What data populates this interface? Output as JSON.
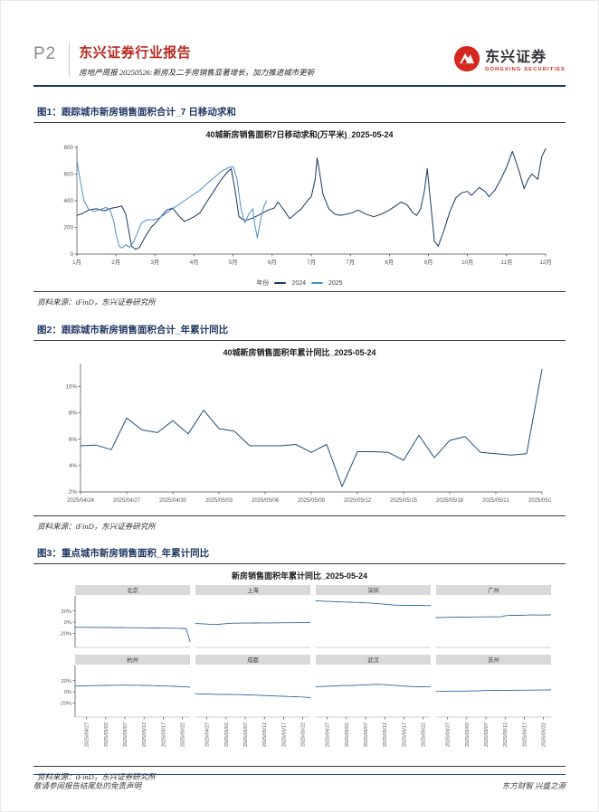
{
  "page": {
    "number": "P2",
    "footer_left": "敬请参阅报告结尾处的免责声明",
    "footer_right": "东方财智 兴盛之源"
  },
  "header": {
    "report_type": "东兴证券行业报告",
    "subtitle": "房地产周报 20250526:新房及二手房销售显著增长，加力推进城市更新",
    "logo_cn": "东兴证券",
    "logo_en": "DONGXING SECURITIES"
  },
  "figures": [
    {
      "caption": "图1：跟踪城市新房销售面积合计_7 日移动求和",
      "source": "资料来源：iFinD，东兴证券研究所"
    },
    {
      "caption": "图2：跟踪城市新房销售面积合计_年累计同比",
      "source": "资料来源：iFinD，东兴证券研究所"
    },
    {
      "caption": "图3：重点城市新房销售面积_年累计同比",
      "source": "资料来源：iFinD，东兴证券研究所"
    }
  ],
  "colors": {
    "accent_red": "#b5291f",
    "caption_navy": "#1f3864",
    "logo_red": "#d5281e",
    "panel_strip": "#d9d9d9"
  },
  "chart_data": [
    {
      "type": "line",
      "title": "40城新房销售面积7日移动求和(万平米)_2025-05-24",
      "legend_title": "年份",
      "x_ticks": [
        "1月",
        "2月",
        "3月",
        "4月",
        "5月",
        "6月",
        "7月",
        "7月",
        "8月",
        "9月",
        "10月",
        "11月",
        "12月"
      ],
      "yticks": [
        0,
        200,
        400,
        600,
        800
      ],
      "ylim": [
        0,
        800
      ],
      "legend_position": "bottom",
      "series": [
        {
          "name": "2024",
          "color": "#17375e",
          "x": [
            0,
            0.15,
            0.3,
            0.5,
            0.7,
            0.9,
            1.0,
            1.15,
            1.25,
            1.4,
            1.5,
            1.6,
            1.75,
            1.9,
            2.0,
            2.15,
            2.3,
            2.45,
            2.6,
            2.75,
            2.9,
            3.0,
            3.15,
            3.3,
            3.5,
            3.7,
            3.85,
            3.95,
            4.05,
            4.15,
            4.3,
            4.5,
            4.7,
            4.9,
            5.05,
            5.15,
            5.3,
            5.45,
            5.6,
            5.75,
            5.9,
            6.0,
            6.1,
            6.15,
            6.2,
            6.3,
            6.45,
            6.6,
            6.75,
            6.9,
            7.05,
            7.2,
            7.4,
            7.6,
            7.8,
            8.0,
            8.15,
            8.3,
            8.45,
            8.6,
            8.7,
            8.8,
            8.9,
            8.97,
            9.05,
            9.15,
            9.25,
            9.4,
            9.55,
            9.7,
            9.85,
            10.0,
            10.1,
            10.2,
            10.3,
            10.45,
            10.55,
            10.7,
            10.85,
            11.0,
            11.15,
            11.3,
            11.45,
            11.55,
            11.65,
            11.8,
            11.9,
            12.0
          ],
          "y": [
            290,
            305,
            330,
            340,
            325,
            345,
            350,
            360,
            300,
            60,
            35,
            50,
            130,
            200,
            230,
            280,
            330,
            345,
            290,
            245,
            265,
            280,
            310,
            380,
            470,
            560,
            615,
            640,
            480,
            280,
            250,
            270,
            300,
            330,
            345,
            390,
            330,
            265,
            305,
            340,
            400,
            430,
            560,
            720,
            640,
            450,
            340,
            300,
            290,
            300,
            310,
            330,
            300,
            280,
            300,
            330,
            360,
            390,
            370,
            310,
            290,
            340,
            480,
            640,
            400,
            100,
            60,
            180,
            320,
            420,
            460,
            470,
            440,
            470,
            500,
            470,
            430,
            480,
            560,
            650,
            770,
            640,
            490,
            560,
            600,
            560,
            730,
            790
          ]
        },
        {
          "name": "2025",
          "color": "#4a90c8",
          "x": [
            0,
            0.08,
            0.18,
            0.3,
            0.45,
            0.6,
            0.75,
            0.85,
            0.95,
            1.0,
            1.08,
            1.15,
            1.25,
            1.35,
            1.45,
            1.55,
            1.65,
            1.8,
            1.95,
            2.1,
            2.25,
            2.4,
            2.55,
            2.7,
            2.85,
            3.0,
            3.15,
            3.3,
            3.5,
            3.7,
            3.9,
            4.0,
            4.1,
            4.2,
            4.3,
            4.4,
            4.5,
            4.55,
            4.62,
            4.7,
            4.78,
            4.85
          ],
          "y": [
            700,
            560,
            400,
            335,
            320,
            335,
            350,
            330,
            240,
            150,
            60,
            45,
            70,
            50,
            90,
            160,
            230,
            260,
            255,
            270,
            300,
            330,
            360,
            390,
            420,
            450,
            480,
            520,
            570,
            620,
            650,
            655,
            560,
            340,
            235,
            300,
            340,
            230,
            120,
            250,
            350,
            400
          ]
        }
      ]
    },
    {
      "type": "line",
      "title": "40城新房销售面积年累计同比_2025-05-24",
      "color": "#1f4e79",
      "unit": "%",
      "yticks": [
        2,
        4,
        6,
        8,
        10
      ],
      "ylim": [
        2,
        11.6
      ],
      "x_tick_labels": [
        "2025/04/24",
        "2025/04/27",
        "2025/04/30",
        "2025/05/03",
        "2025/05/06",
        "2025/05/09",
        "2025/05/12",
        "2025/05/15",
        "2025/05/18",
        "2025/05/21",
        "2025/05/24"
      ],
      "x_tick_step": 3,
      "values": [
        5.5,
        5.55,
        5.2,
        7.6,
        6.7,
        6.5,
        7.4,
        6.4,
        8.2,
        6.8,
        6.6,
        5.5,
        5.5,
        5.5,
        5.6,
        5.0,
        5.6,
        2.4,
        5.05,
        5.05,
        5.0,
        4.4,
        6.3,
        4.6,
        5.9,
        6.2,
        5.0,
        4.9,
        4.8,
        4.9,
        11.3
      ]
    },
    {
      "type": "small-multiples-line",
      "title": "新房销售面积年累计同比_2025-05-24",
      "color": "#2d6a9f",
      "unit": "%",
      "yticks": [
        20,
        0,
        -20
      ],
      "ylim": [
        -45,
        45
      ],
      "x_tick_labels": [
        "2025/04/27",
        "2025/05/02",
        "2025/05/07",
        "2025/05/12",
        "2025/05/17",
        "2025/05/22"
      ],
      "x_tick_indices": [
        3,
        8,
        13,
        18,
        23,
        28
      ],
      "points_per_panel": 31,
      "panels": [
        {
          "name": "北京",
          "values": [
            -9,
            -9.2,
            -9.1,
            -9.3,
            -9.4,
            -9.3,
            -9.5,
            -9.4,
            -9.6,
            -9.5,
            -9.7,
            -9.8,
            -9.7,
            -9.9,
            -10,
            -9.9,
            -10.1,
            -10.2,
            -10.1,
            -10.3,
            -10.4,
            -10.5,
            -10.4,
            -10.6,
            -10.7,
            -10.8,
            -10.9,
            -11,
            -11.2,
            -11.3,
            -35
          ]
        },
        {
          "name": "上海",
          "values": [
            -2.5,
            -2.8,
            -3.1,
            -3.6,
            -4.2,
            -4.4,
            -4,
            -3.4,
            -2.8,
            -2.3,
            -2,
            -1.9,
            -1.8,
            -1.7,
            -1.7,
            -1.6,
            -1.6,
            -1.5,
            -1.5,
            -1.4,
            -1.4,
            -1.3,
            -1.3,
            -1.2,
            -1.2,
            -1.1,
            -1.1,
            -1,
            -1,
            -0.9,
            -1
          ]
        },
        {
          "name": "深圳",
          "values": [
            38,
            37.6,
            37.2,
            36.9,
            36.6,
            36.4,
            36.1,
            35.9,
            35.6,
            35.4,
            35.1,
            34.9,
            34.6,
            34.3,
            34,
            33.5,
            33,
            32.4,
            31.8,
            31.2,
            30.6,
            30.2,
            29.9,
            29.7,
            29.6,
            29.7,
            29.8,
            29.7,
            29.6,
            29.4,
            29.2
          ]
        },
        {
          "name": "广州",
          "values": [
            8,
            8.2,
            8.4,
            8.5,
            8.6,
            8.7,
            8.8,
            8.9,
            9,
            9,
            9.1,
            9.2,
            9.2,
            9.3,
            9.3,
            9.4,
            9.4,
            9.5,
            11.4,
            11.9,
            12.1,
            12,
            12.2,
            12.4,
            12.6,
            12.8,
            12.7,
            12.5,
            12.6,
            12.8,
            13
          ]
        },
        {
          "name": "杭州",
          "values": [
            10,
            10.2,
            10.4,
            10.6,
            10.8,
            10.9,
            11,
            11.2,
            11.3,
            11.4,
            11.5,
            11.6,
            11.5,
            11.7,
            11.7,
            11.6,
            11.5,
            11.4,
            11.2,
            11.1,
            10.9,
            10.7,
            10.5,
            10.3,
            10.1,
            9.9,
            9.6,
            9.3,
            9,
            8.6,
            8.2
          ]
        },
        {
          "name": "成都",
          "values": [
            -3.5,
            -3.8,
            -4,
            -4.2,
            -4.4,
            -4.5,
            -4.6,
            -4.7,
            -4.8,
            -4.9,
            -5,
            -5.1,
            -5.2,
            -5.4,
            -5.6,
            -5.9,
            -6.1,
            -6.4,
            -6.7,
            -7,
            -7.3,
            -7.6,
            -7.8,
            -8.1,
            -8.3,
            -8.6,
            -8.8,
            -9.1,
            -9.4,
            -9.9,
            -10.5
          ]
        },
        {
          "name": "武汉",
          "values": [
            9,
            9.2,
            9.5,
            9.7,
            10,
            10.4,
            10.7,
            11,
            11.1,
            11,
            11.2,
            11.5,
            11.9,
            12.2,
            12.6,
            12.9,
            13.1,
            13,
            12.6,
            12.1,
            11.6,
            11.1,
            10.6,
            10.1,
            9.6,
            9.3,
            9,
            8.8,
            8.8,
            9,
            9.2
          ]
        },
        {
          "name": "苏州",
          "values": [
            0.5,
            0.7,
            0.9,
            1,
            1.1,
            1.1,
            1.2,
            1.2,
            1.3,
            1.4,
            1.4,
            1.5,
            2.1,
            2.3,
            2.3,
            2.4,
            2.4,
            2.5,
            2.5,
            2.6,
            2.6,
            2.7,
            2.7,
            2.8,
            2.8,
            2.9,
            2.9,
            3,
            3.1,
            3.2,
            3.5
          ]
        }
      ]
    }
  ]
}
